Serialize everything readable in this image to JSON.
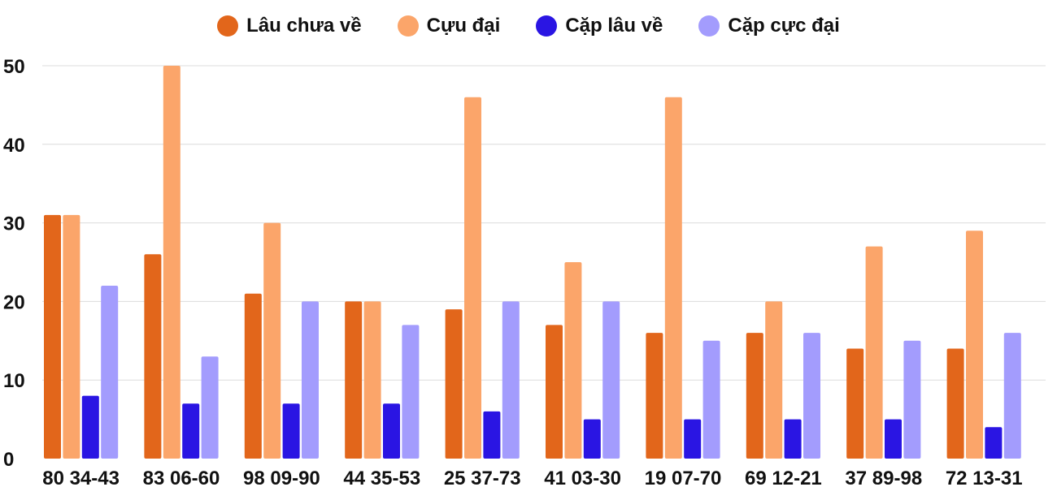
{
  "chart_data": {
    "type": "bar",
    "title": "",
    "xlabel": "",
    "ylabel": "",
    "ylim": [
      0,
      50
    ],
    "yticks": [
      0,
      10,
      20,
      30,
      40,
      50
    ],
    "grid": true,
    "legend_position": "top-center",
    "categories": [
      "80 34-43",
      "83 06-60",
      "98 09-90",
      "44 35-53",
      "25 37-73",
      "41 03-30",
      "19 07-70",
      "69 12-21",
      "37 89-98",
      "72 13-31"
    ],
    "series": [
      {
        "name": "Lâu chưa về",
        "color": "#e2661b",
        "values": [
          31,
          26,
          21,
          20,
          19,
          17,
          16,
          16,
          14,
          14
        ]
      },
      {
        "name": "Cựu đại",
        "color": "#fba56a",
        "values": [
          31,
          50,
          30,
          20,
          46,
          25,
          46,
          20,
          27,
          29
        ]
      },
      {
        "name": "Cặp lâu về",
        "color": "#2a15e3",
        "values": [
          8,
          7,
          7,
          7,
          6,
          5,
          5,
          5,
          5,
          4
        ]
      },
      {
        "name": "Cặp cực đại",
        "color": "#a39cfd",
        "values": [
          22,
          13,
          20,
          17,
          20,
          20,
          15,
          16,
          15,
          16
        ]
      }
    ]
  }
}
